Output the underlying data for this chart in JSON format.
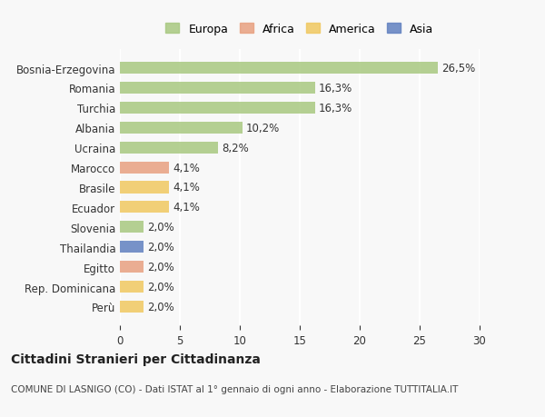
{
  "categories": [
    "Bosnia-Erzegovina",
    "Romania",
    "Turchia",
    "Albania",
    "Ucraina",
    "Marocco",
    "Brasile",
    "Ecuador",
    "Slovenia",
    "Thailandia",
    "Egitto",
    "Rep. Dominicana",
    "Perù"
  ],
  "values": [
    26.5,
    16.3,
    16.3,
    10.2,
    8.2,
    4.1,
    4.1,
    4.1,
    2.0,
    2.0,
    2.0,
    2.0,
    2.0
  ],
  "labels": [
    "26,5%",
    "16,3%",
    "16,3%",
    "10,2%",
    "8,2%",
    "4,1%",
    "4,1%",
    "4,1%",
    "2,0%",
    "2,0%",
    "2,0%",
    "2,0%",
    "2,0%"
  ],
  "continents": [
    "Europa",
    "Europa",
    "Europa",
    "Europa",
    "Europa",
    "Africa",
    "America",
    "America",
    "Europa",
    "Asia",
    "Africa",
    "America",
    "America"
  ],
  "colors": {
    "Europa": "#a8c880",
    "Africa": "#e8a080",
    "America": "#f0c860",
    "Asia": "#6080c0"
  },
  "legend_order": [
    "Europa",
    "Africa",
    "America",
    "Asia"
  ],
  "title": "Cittadini Stranieri per Cittadinanza",
  "subtitle": "COMUNE DI LASNIGO (CO) - Dati ISTAT al 1° gennaio di ogni anno - Elaborazione TUTTITALIA.IT",
  "xlim": [
    0,
    30
  ],
  "xticks": [
    0,
    5,
    10,
    15,
    20,
    25,
    30
  ],
  "background_color": "#f8f8f8",
  "grid_color": "#ffffff"
}
